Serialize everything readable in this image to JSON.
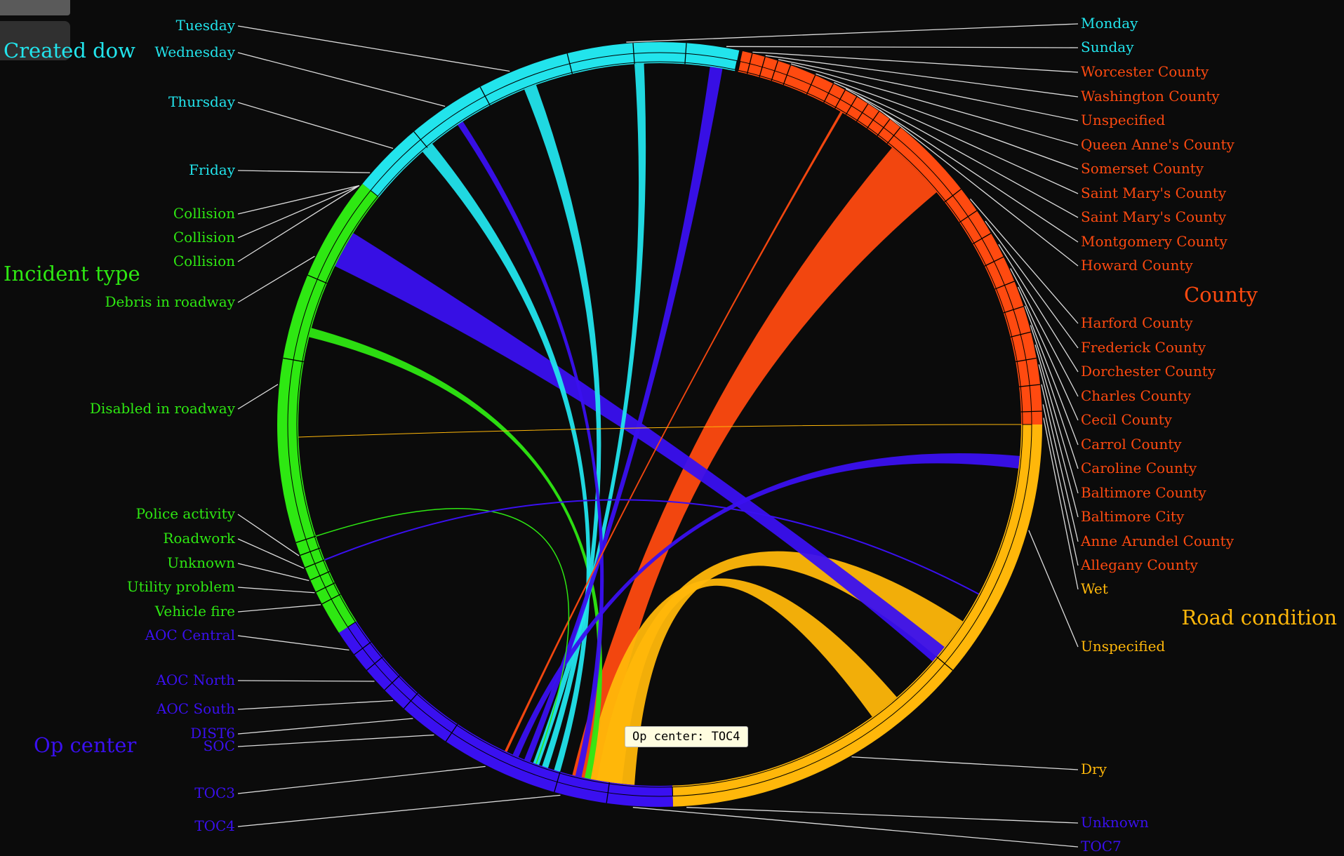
{
  "colors": {
    "created_dow": "#22e4ec",
    "incident_type": "#2ee812",
    "op_center": "#3a10f0",
    "road_condition": "#ffb70a",
    "county": "#ff4a10",
    "leader_line": "#dcdcdc",
    "background": "#0b0b0b"
  },
  "tooltip": "Op center: TOC4",
  "groups": [
    {
      "id": "created_dow",
      "title": "Created dow",
      "color": "#22e4ec",
      "labels": [
        "Tuesday",
        "Wednesday",
        "Thursday",
        "Friday",
        "Monday",
        "Sunday"
      ]
    },
    {
      "id": "incident_type",
      "title": "Incident type",
      "color": "#2ee812",
      "labels": [
        "Collision",
        "Collision",
        "Collision",
        "Debris in roadway",
        "Disabled in roadway",
        "Police activity",
        "Roadwork",
        "Unknown",
        "Utility problem",
        "Vehicle fire"
      ]
    },
    {
      "id": "op_center",
      "title": "Op center",
      "color": "#3a10f0",
      "labels": [
        "AOC Central",
        "AOC North",
        "AOC South",
        "DIST6",
        "SOC",
        "TOC3",
        "TOC4",
        "Unknown",
        "TOC7"
      ]
    },
    {
      "id": "road_condition",
      "title": "Road condition",
      "color": "#ffb70a",
      "labels": [
        "Wet",
        "Unspecified",
        "Dry"
      ]
    },
    {
      "id": "county",
      "title": "County",
      "color": "#ff4a10",
      "labels": [
        "Worcester County",
        "Washington County",
        "Unspecified",
        "Queen Anne's County",
        "Somerset County",
        "Saint Mary's County",
        "Saint Mary's County",
        "Montgomery County",
        "Howard County",
        "Harford County",
        "Frederick County",
        "Dorchester County",
        "Charles County",
        "Cecil County",
        "Carrol County",
        "Caroline County",
        "Baltimore County",
        "Baltimore City",
        "Anne Arundel County",
        "Allegany County"
      ]
    }
  ]
}
